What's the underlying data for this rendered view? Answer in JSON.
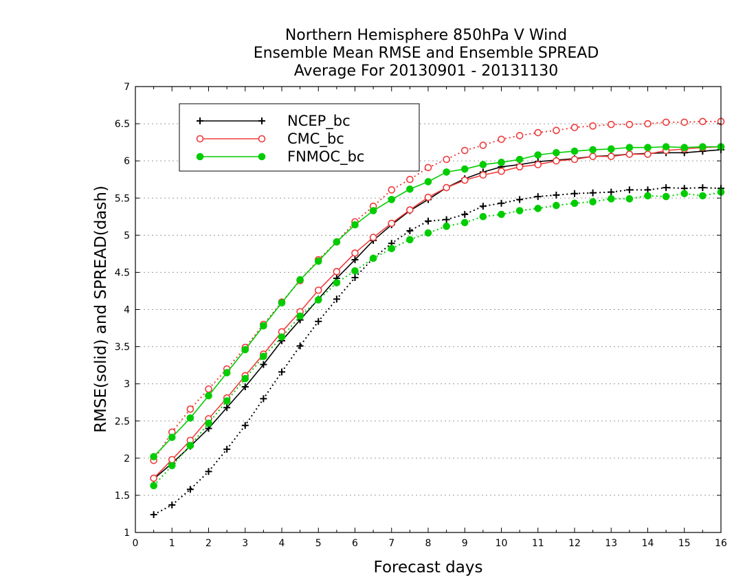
{
  "chart_data": {
    "type": "line",
    "title_lines": [
      "Northern Hemisphere 850hPa V Wind",
      "Ensemble Mean RMSE and Ensemble SPREAD",
      "Average For 20130901 - 20131130"
    ],
    "xlabel": "Forecast days",
    "ylabel": "RMSE(solid) and SPREAD(dash)",
    "xlim": [
      0,
      16
    ],
    "ylim": [
      1,
      7
    ],
    "xticks": [
      0,
      1,
      2,
      3,
      4,
      5,
      6,
      7,
      8,
      9,
      10,
      11,
      12,
      13,
      14,
      15,
      16
    ],
    "yticks": [
      1,
      1.5,
      2,
      2.5,
      3,
      3.5,
      4,
      4.5,
      5,
      5.5,
      6,
      6.5,
      7
    ],
    "y_grid": "dotted",
    "legend_position": "top-left",
    "x": [
      0.5,
      1,
      1.5,
      2,
      2.5,
      3,
      3.5,
      4,
      4.5,
      5,
      5.5,
      6,
      6.5,
      7,
      7.5,
      8,
      8.5,
      9,
      9.5,
      10,
      10.5,
      11,
      11.5,
      12,
      12.5,
      13,
      13.5,
      14,
      14.5,
      15,
      15.5,
      16
    ],
    "series": [
      {
        "name": "NCEP_bc",
        "color": "#000000",
        "marker": "plus",
        "rmse": [
          1.72,
          1.93,
          2.16,
          2.4,
          2.68,
          2.96,
          3.26,
          3.58,
          3.86,
          4.14,
          4.42,
          4.67,
          4.93,
          5.14,
          5.33,
          5.48,
          5.64,
          5.76,
          5.85,
          5.92,
          5.95,
          5.99,
          6.01,
          6.03,
          6.06,
          6.07,
          6.09,
          6.1,
          6.11,
          6.11,
          6.13,
          6.15
        ],
        "spread": [
          1.24,
          1.37,
          1.58,
          1.82,
          2.12,
          2.44,
          2.8,
          3.16,
          3.51,
          3.84,
          4.14,
          4.43,
          4.69,
          4.89,
          5.06,
          5.19,
          5.21,
          5.28,
          5.39,
          5.43,
          5.48,
          5.52,
          5.54,
          5.56,
          5.57,
          5.58,
          5.61,
          5.61,
          5.64,
          5.63,
          5.64,
          5.63
        ]
      },
      {
        "name": "CMC_bc",
        "color": "#ee3b3b",
        "marker": "open-circle",
        "rmse": [
          1.73,
          1.98,
          2.24,
          2.53,
          2.81,
          3.11,
          3.4,
          3.7,
          3.97,
          4.26,
          4.51,
          4.76,
          4.97,
          5.16,
          5.34,
          5.51,
          5.64,
          5.74,
          5.81,
          5.86,
          5.92,
          5.95,
          6.0,
          6.02,
          6.06,
          6.06,
          6.09,
          6.09,
          6.14,
          6.16,
          6.18,
          6.19
        ],
        "spread": [
          1.97,
          2.35,
          2.66,
          2.93,
          3.2,
          3.49,
          3.8,
          4.1,
          4.39,
          4.67,
          4.91,
          5.18,
          5.39,
          5.61,
          5.75,
          5.91,
          6.02,
          6.14,
          6.21,
          6.29,
          6.34,
          6.38,
          6.41,
          6.45,
          6.47,
          6.49,
          6.49,
          6.5,
          6.52,
          6.52,
          6.53,
          6.53
        ]
      },
      {
        "name": "FNMOC_bc",
        "color": "#00cc00",
        "marker": "filled-circle",
        "rmse": [
          2.02,
          2.28,
          2.54,
          2.84,
          3.15,
          3.46,
          3.78,
          4.09,
          4.4,
          4.65,
          4.91,
          5.14,
          5.33,
          5.48,
          5.62,
          5.72,
          5.85,
          5.89,
          5.95,
          5.98,
          6.02,
          6.08,
          6.11,
          6.13,
          6.15,
          6.16,
          6.18,
          6.18,
          6.19,
          6.18,
          6.19,
          6.19
        ],
        "spread": [
          1.63,
          1.9,
          2.17,
          2.47,
          2.77,
          3.07,
          3.37,
          3.63,
          3.91,
          4.13,
          4.36,
          4.52,
          4.69,
          4.82,
          4.94,
          5.03,
          5.12,
          5.17,
          5.25,
          5.28,
          5.33,
          5.36,
          5.4,
          5.43,
          5.45,
          5.49,
          5.49,
          5.53,
          5.52,
          5.56,
          5.53,
          5.58
        ]
      }
    ]
  }
}
